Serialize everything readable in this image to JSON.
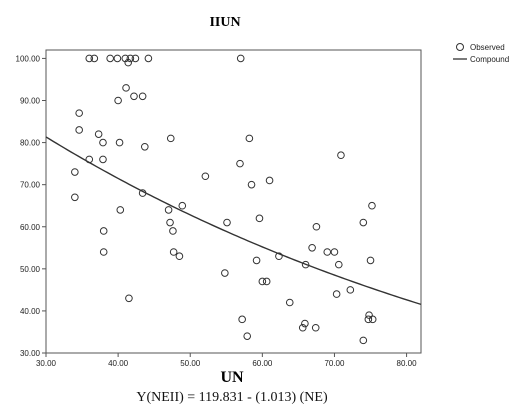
{
  "chart_data": {
    "type": "scatter",
    "title": "IIUN",
    "xlabel": "UN",
    "ylabel": "",
    "equation": "Y(NEII) = 119.831 - (1.013) (NE)",
    "xlim": [
      30,
      82
    ],
    "ylim": [
      30,
      102
    ],
    "xticks": [
      "30.00",
      "40.00",
      "50.00",
      "60.00",
      "70.00",
      "80.00"
    ],
    "yticks": [
      "30.00",
      "40.00",
      "50.00",
      "60.00",
      "70.00",
      "80.00",
      "90.00",
      "100.00"
    ],
    "grid": false,
    "legend_position": "right",
    "series": [
      {
        "name": "Observed",
        "kind": "scatter",
        "points": [
          [
            36.0,
            100
          ],
          [
            36.7,
            100
          ],
          [
            38.9,
            100
          ],
          [
            39.9,
            100
          ],
          [
            41.0,
            100
          ],
          [
            41.7,
            100
          ],
          [
            42.4,
            100
          ],
          [
            44.2,
            100
          ],
          [
            57.0,
            100
          ],
          [
            41.4,
            99
          ],
          [
            41.1,
            93
          ],
          [
            40.0,
            90
          ],
          [
            42.2,
            91
          ],
          [
            43.4,
            91
          ],
          [
            34.6,
            87
          ],
          [
            34.6,
            83
          ],
          [
            37.3,
            82
          ],
          [
            37.9,
            80
          ],
          [
            40.2,
            80
          ],
          [
            36.0,
            76
          ],
          [
            37.9,
            76
          ],
          [
            43.7,
            79
          ],
          [
            47.3,
            81
          ],
          [
            58.2,
            81
          ],
          [
            34.0,
            73
          ],
          [
            34.0,
            67
          ],
          [
            43.4,
            68
          ],
          [
            40.3,
            64
          ],
          [
            52.1,
            72
          ],
          [
            56.9,
            75
          ],
          [
            58.5,
            70
          ],
          [
            61.0,
            71
          ],
          [
            70.9,
            77
          ],
          [
            38.0,
            59
          ],
          [
            38.0,
            54
          ],
          [
            47.0,
            64
          ],
          [
            47.2,
            61
          ],
          [
            47.6,
            59
          ],
          [
            47.7,
            54
          ],
          [
            48.5,
            53
          ],
          [
            48.9,
            65
          ],
          [
            55.1,
            61
          ],
          [
            59.6,
            62
          ],
          [
            59.2,
            52
          ],
          [
            62.3,
            53
          ],
          [
            60.0,
            47
          ],
          [
            60.6,
            47
          ],
          [
            63.8,
            42
          ],
          [
            41.5,
            43
          ],
          [
            54.8,
            49
          ],
          [
            57.2,
            38
          ],
          [
            57.9,
            34
          ],
          [
            65.6,
            36
          ],
          [
            65.9,
            37
          ],
          [
            66.0,
            51
          ],
          [
            66.9,
            55
          ],
          [
            67.5,
            60
          ],
          [
            67.4,
            36
          ],
          [
            69.0,
            54
          ],
          [
            70.0,
            54
          ],
          [
            70.6,
            51
          ],
          [
            70.3,
            44
          ],
          [
            72.2,
            45
          ],
          [
            74.0,
            61
          ],
          [
            75.2,
            65
          ],
          [
            75.0,
            52
          ],
          [
            74.7,
            38
          ],
          [
            75.3,
            38
          ],
          [
            74.8,
            39
          ],
          [
            74.0,
            33
          ]
        ]
      },
      {
        "name": "Compound",
        "kind": "line",
        "model": "Compound",
        "b0": 119.831,
        "b1": 1.013
      }
    ]
  }
}
